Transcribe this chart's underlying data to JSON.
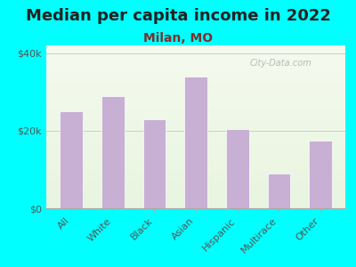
{
  "title": "Median per capita income in 2022",
  "subtitle": "Milan, MO",
  "categories": [
    "All",
    "White",
    "Black",
    "Asian",
    "Hispanic",
    "Multirace",
    "Other"
  ],
  "values": [
    25000,
    29000,
    23000,
    34000,
    20500,
    9000,
    17500
  ],
  "bar_color": "#c8afd4",
  "background_color": "#00ffff",
  "title_color": "#222222",
  "subtitle_color": "#7a3030",
  "tick_color": "#555555",
  "ylabel_ticks": [
    0,
    20000,
    40000
  ],
  "ylabel_labels": [
    "$0",
    "$20k",
    "$40k"
  ],
  "ylim": [
    0,
    42000
  ],
  "watermark": "City-Data.com",
  "title_fontsize": 13,
  "subtitle_fontsize": 10,
  "tick_fontsize": 8
}
